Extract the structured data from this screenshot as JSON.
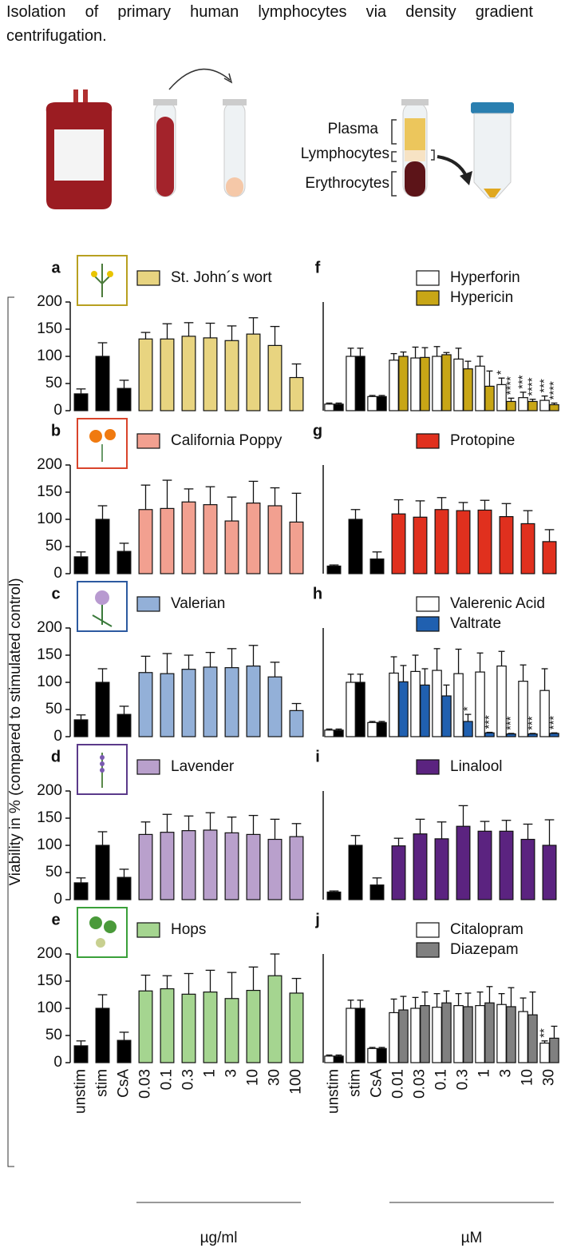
{
  "header": {
    "text": "Isolation of primary human lymphocytes via density gradient centrifugation."
  },
  "diagram": {
    "labels": [
      "Plasma",
      "Lymphocytes",
      "Erythrocytes"
    ]
  },
  "ylabel": "Viability in % (compared to stimulated control)",
  "chart_data": [
    {
      "type": "bar",
      "panel": "a",
      "categories": [
        null,
        null,
        null,
        null,
        null,
        null,
        null,
        null,
        null,
        null,
        null
      ],
      "ylim": [
        0,
        200
      ],
      "yticks": [
        0,
        50,
        100,
        150,
        200
      ],
      "series": [
        {
          "name": "St. John´s wort",
          "color": "#e8d480",
          "bar_colors": [
            "#000000",
            "#000000",
            "#000000",
            "#e8d480",
            "#e8d480",
            "#e8d480",
            "#e8d480",
            "#e8d480",
            "#e8d480",
            "#e8d480",
            "#e8d480"
          ],
          "values": [
            31,
            100,
            41,
            132,
            132,
            137,
            134,
            129,
            141,
            120,
            61
          ],
          "errors": [
            9,
            25,
            15,
            12,
            28,
            25,
            27,
            27,
            30,
            35,
            25
          ]
        }
      ]
    },
    {
      "type": "bar",
      "panel": "b",
      "categories": [
        null,
        null,
        null,
        null,
        null,
        null,
        null,
        null,
        null,
        null,
        null
      ],
      "ylim": [
        0,
        200
      ],
      "yticks": [
        0,
        50,
        100,
        150,
        200
      ],
      "series": [
        {
          "name": "California Poppy",
          "color": "#f2a090",
          "bar_colors": [
            "#000000",
            "#000000",
            "#000000",
            "#f2a090",
            "#f2a090",
            "#f2a090",
            "#f2a090",
            "#f2a090",
            "#f2a090",
            "#f2a090",
            "#f2a090"
          ],
          "values": [
            31,
            100,
            41,
            118,
            120,
            132,
            127,
            97,
            130,
            125,
            95
          ],
          "errors": [
            9,
            25,
            15,
            45,
            52,
            24,
            33,
            44,
            40,
            33,
            53
          ]
        }
      ]
    },
    {
      "type": "bar",
      "panel": "c",
      "categories": [
        null,
        null,
        null,
        null,
        null,
        null,
        null,
        null,
        null,
        null,
        null
      ],
      "ylim": [
        0,
        200
      ],
      "yticks": [
        0,
        50,
        100,
        150,
        200
      ],
      "series": [
        {
          "name": "Valerian",
          "color": "#93b0d8",
          "bar_colors": [
            "#000000",
            "#000000",
            "#000000",
            "#93b0d8",
            "#93b0d8",
            "#93b0d8",
            "#93b0d8",
            "#93b0d8",
            "#93b0d8",
            "#93b0d8",
            "#93b0d8"
          ],
          "values": [
            31,
            100,
            41,
            118,
            116,
            124,
            128,
            127,
            130,
            110,
            48
          ],
          "errors": [
            9,
            25,
            15,
            30,
            37,
            26,
            27,
            35,
            38,
            27,
            13
          ]
        }
      ]
    },
    {
      "type": "bar",
      "panel": "d",
      "categories": [
        null,
        null,
        null,
        null,
        null,
        null,
        null,
        null,
        null,
        null,
        null
      ],
      "ylim": [
        0,
        200
      ],
      "yticks": [
        0,
        50,
        100,
        150,
        200
      ],
      "series": [
        {
          "name": "Lavender",
          "color": "#b9a0cc",
          "bar_colors": [
            "#000000",
            "#000000",
            "#000000",
            "#b9a0cc",
            "#b9a0cc",
            "#b9a0cc",
            "#b9a0cc",
            "#b9a0cc",
            "#b9a0cc",
            "#b9a0cc",
            "#b9a0cc"
          ],
          "values": [
            31,
            100,
            41,
            120,
            124,
            127,
            128,
            123,
            120,
            111,
            116
          ],
          "errors": [
            9,
            25,
            15,
            23,
            33,
            27,
            32,
            29,
            35,
            37,
            24
          ]
        }
      ]
    },
    {
      "type": "bar",
      "panel": "e",
      "categories": [
        "unstim",
        "stim",
        "CsA",
        "0.03",
        "0.1",
        "0.3",
        "1",
        "3",
        "10",
        "30",
        "100"
      ],
      "xlabel": "µg/ml",
      "ylim": [
        0,
        200
      ],
      "yticks": [
        0,
        50,
        100,
        150,
        200
      ],
      "series": [
        {
          "name": "Hops",
          "color": "#a5d590",
          "bar_colors": [
            "#000000",
            "#000000",
            "#000000",
            "#a5d590",
            "#a5d590",
            "#a5d590",
            "#a5d590",
            "#a5d590",
            "#a5d590",
            "#a5d590",
            "#a5d590"
          ],
          "values": [
            31,
            100,
            41,
            132,
            136,
            126,
            130,
            118,
            133,
            160,
            128
          ],
          "errors": [
            9,
            25,
            15,
            29,
            24,
            38,
            40,
            48,
            43,
            40,
            27
          ]
        }
      ]
    },
    {
      "type": "bar",
      "panel": "f",
      "categories": [
        null,
        null,
        null,
        null,
        null,
        null,
        null,
        null,
        null,
        null,
        null
      ],
      "ylim": [
        0,
        200
      ],
      "series": [
        {
          "name": "Hyperforin",
          "color": "#ffffff",
          "bar_colors": [
            "#ffffff",
            "#ffffff",
            "#ffffff",
            "#ffffff",
            "#ffffff",
            "#ffffff",
            "#ffffff",
            "#ffffff",
            "#ffffff",
            "#ffffff",
            "#ffffff"
          ],
          "values": [
            12,
            100,
            26,
            93,
            97,
            100,
            95,
            82,
            48,
            24,
            19
          ],
          "errors": [
            2,
            15,
            2,
            12,
            20,
            18,
            20,
            18,
            12,
            10,
            8
          ],
          "stars": [
            null,
            null,
            null,
            null,
            null,
            null,
            null,
            null,
            "*",
            "***",
            "***"
          ]
        },
        {
          "name": "Hypericin",
          "color": "#c8a616",
          "bar_colors": [
            "#000000",
            "#000000",
            "#000000",
            "#c8a616",
            "#c8a616",
            "#c8a616",
            "#c8a616",
            "#c8a616",
            "#c8a616",
            "#c8a616",
            "#c8a616"
          ],
          "values": [
            12,
            100,
            26,
            100,
            98,
            103,
            77,
            45,
            17,
            17,
            11
          ],
          "errors": [
            2,
            15,
            2,
            8,
            18,
            4,
            14,
            28,
            6,
            4,
            3
          ],
          "stars": [
            null,
            null,
            null,
            null,
            null,
            null,
            null,
            null,
            "****",
            "****",
            "****"
          ]
        }
      ]
    },
    {
      "type": "bar",
      "panel": "g",
      "categories": [
        null,
        null,
        null,
        null,
        null,
        null,
        null,
        null,
        null,
        null,
        null
      ],
      "ylim": [
        0,
        200
      ],
      "series": [
        {
          "name": "Protopine",
          "color": "#e0301e",
          "bar_colors": [
            "#000000",
            "#000000",
            "#000000",
            "#e0301e",
            "#e0301e",
            "#e0301e",
            "#e0301e",
            "#e0301e",
            "#e0301e",
            "#e0301e",
            "#e0301e"
          ],
          "values": [
            14,
            100,
            27,
            110,
            104,
            118,
            116,
            117,
            105,
            92,
            59
          ],
          "errors": [
            2,
            18,
            13,
            26,
            30,
            22,
            15,
            18,
            24,
            24,
            22
          ]
        }
      ]
    },
    {
      "type": "bar",
      "panel": "h",
      "categories": [
        null,
        null,
        null,
        null,
        null,
        null,
        null,
        null,
        null,
        null,
        null
      ],
      "ylim": [
        0,
        200
      ],
      "series": [
        {
          "name": "Valerenic Acid",
          "color": "#ffffff",
          "bar_colors": [
            "#ffffff",
            "#ffffff",
            "#ffffff",
            "#ffffff",
            "#ffffff",
            "#ffffff",
            "#ffffff",
            "#ffffff",
            "#ffffff",
            "#ffffff",
            "#ffffff"
          ],
          "values": [
            12,
            100,
            26,
            117,
            120,
            122,
            116,
            119,
            130,
            102,
            85
          ],
          "errors": [
            2,
            15,
            2,
            30,
            30,
            40,
            45,
            35,
            27,
            30,
            40
          ]
        },
        {
          "name": "Valtrate",
          "color": "#2060b0",
          "bar_colors": [
            "#000000",
            "#000000",
            "#000000",
            "#2060b0",
            "#2060b0",
            "#2060b0",
            "#2060b0",
            "#2060b0",
            "#2060b0",
            "#2060b0",
            "#2060b0"
          ],
          "values": [
            12,
            100,
            26,
            101,
            95,
            75,
            28,
            7,
            5,
            5,
            6
          ],
          "errors": [
            2,
            15,
            2,
            30,
            30,
            20,
            13,
            1,
            1,
            1,
            1
          ],
          "stars": [
            null,
            null,
            null,
            null,
            null,
            null,
            "*",
            "***",
            "***",
            "***",
            "***"
          ]
        }
      ]
    },
    {
      "type": "bar",
      "panel": "i",
      "categories": [
        null,
        null,
        null,
        null,
        null,
        null,
        null,
        null,
        null,
        null,
        null
      ],
      "ylim": [
        0,
        200
      ],
      "series": [
        {
          "name": "Linalool",
          "color": "#5b2380",
          "bar_colors": [
            "#000000",
            "#000000",
            "#000000",
            "#5b2380",
            "#5b2380",
            "#5b2380",
            "#5b2380",
            "#5b2380",
            "#5b2380",
            "#5b2380",
            "#5b2380"
          ],
          "values": [
            14,
            100,
            27,
            99,
            121,
            112,
            135,
            126,
            126,
            111,
            100
          ],
          "errors": [
            2,
            18,
            13,
            14,
            27,
            31,
            38,
            18,
            20,
            28,
            47
          ]
        }
      ]
    },
    {
      "type": "bar",
      "panel": "j",
      "categories": [
        "unstim",
        "stim",
        "CsA",
        "0.01",
        "0.03",
        "0.1",
        "0.3",
        "1",
        "3",
        "10",
        "30"
      ],
      "xlabel": "µM",
      "ylim": [
        0,
        200
      ],
      "series": [
        {
          "name": "Citalopram",
          "color": "#ffffff",
          "bar_colors": [
            "#ffffff",
            "#ffffff",
            "#ffffff",
            "#ffffff",
            "#ffffff",
            "#ffffff",
            "#ffffff",
            "#ffffff",
            "#ffffff",
            "#ffffff",
            "#ffffff"
          ],
          "values": [
            12,
            100,
            26,
            92,
            100,
            102,
            105,
            105,
            107,
            94,
            36
          ],
          "errors": [
            2,
            15,
            2,
            25,
            20,
            25,
            22,
            25,
            20,
            25,
            4
          ],
          "stars": [
            null,
            null,
            null,
            null,
            null,
            null,
            null,
            null,
            null,
            null,
            "**"
          ]
        },
        {
          "name": "Diazepam",
          "color": "#808080",
          "bar_colors": [
            "#000000",
            "#000000",
            "#000000",
            "#808080",
            "#808080",
            "#808080",
            "#808080",
            "#808080",
            "#808080",
            "#808080",
            "#808080"
          ],
          "values": [
            12,
            100,
            26,
            97,
            105,
            110,
            103,
            110,
            103,
            88,
            45
          ],
          "errors": [
            2,
            15,
            2,
            25,
            25,
            22,
            25,
            30,
            35,
            42,
            22
          ]
        }
      ]
    }
  ]
}
